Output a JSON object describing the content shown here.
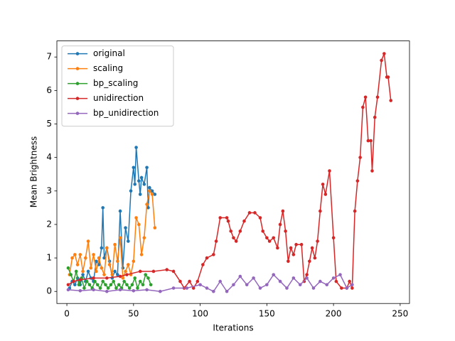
{
  "chart_data": {
    "type": "line",
    "xlabel": "Iterations",
    "ylabel": "Mean Brightness",
    "xlim": [
      -7.5,
      257
    ],
    "ylim": [
      -0.36,
      7.48
    ],
    "xticks": [
      0,
      50,
      100,
      150,
      200,
      250
    ],
    "yticks": [
      0,
      1,
      2,
      3,
      4,
      5,
      6,
      7
    ],
    "legend": "upper left",
    "series": [
      {
        "name": "original",
        "color": "#1f77b4",
        "x": [
          2,
          4,
          6,
          8,
          10,
          12,
          14,
          16,
          18,
          20,
          22,
          24,
          26,
          27,
          28,
          30,
          32,
          34,
          36,
          38,
          40,
          42,
          44,
          46,
          48,
          50,
          51,
          52,
          54,
          55,
          56,
          58,
          60,
          61,
          62,
          64,
          66
        ],
        "values": [
          0.1,
          0.3,
          0.2,
          0.4,
          0.2,
          0.5,
          0.3,
          0.6,
          0.4,
          0.3,
          0.9,
          0.8,
          1.3,
          2.5,
          1.0,
          1.3,
          0.9,
          0.4,
          0.6,
          0.5,
          2.4,
          0.7,
          1.9,
          1.5,
          3.0,
          3.7,
          3.2,
          4.3,
          3.3,
          2.9,
          3.4,
          3.2,
          3.7,
          2.5,
          3.1,
          3.0,
          2.9
        ]
      },
      {
        "name": "scaling",
        "color": "#ff7f0e",
        "x": [
          2,
          4,
          6,
          8,
          10,
          12,
          14,
          16,
          18,
          20,
          22,
          24,
          26,
          28,
          30,
          32,
          34,
          36,
          38,
          40,
          42,
          44,
          46,
          48,
          50,
          52,
          54,
          56,
          58,
          60,
          62,
          64,
          66
        ],
        "values": [
          0.5,
          1.0,
          1.1,
          0.8,
          1.1,
          0.6,
          1.0,
          1.5,
          0.7,
          1.1,
          0.6,
          1.0,
          0.7,
          0.5,
          1.3,
          0.8,
          0.5,
          1.4,
          0.9,
          1.6,
          0.4,
          0.6,
          0.8,
          0.5,
          0.9,
          2.2,
          2.0,
          1.1,
          1.6,
          2.6,
          3.0,
          2.9,
          1.9
        ]
      },
      {
        "name": "bp_scaling",
        "color": "#2ca02c",
        "x": [
          1,
          3,
          5,
          7,
          9,
          11,
          13,
          15,
          17,
          19,
          21,
          23,
          25,
          27,
          29,
          31,
          33,
          35,
          37,
          39,
          41,
          43,
          45,
          47,
          49,
          51,
          53,
          55,
          57,
          59,
          61,
          63
        ],
        "values": [
          0.7,
          0.5,
          0.3,
          0.6,
          0.2,
          0.4,
          0.1,
          0.3,
          0.2,
          0.1,
          0.3,
          0.2,
          0.1,
          0.3,
          0.2,
          0.1,
          0.2,
          0.3,
          0.1,
          0.2,
          0.1,
          0.3,
          0.2,
          0.1,
          0.2,
          0.4,
          0.1,
          0.3,
          0.2,
          0.5,
          0.4,
          0.2
        ]
      },
      {
        "name": "unidirection",
        "color": "#d62728",
        "x": [
          1,
          5,
          10,
          20,
          30,
          40,
          45,
          55,
          65,
          75,
          80,
          85,
          88,
          92,
          95,
          98,
          102,
          105,
          110,
          112,
          115,
          120,
          121,
          123,
          125,
          127,
          130,
          133,
          137,
          141,
          145,
          147,
          150,
          152,
          155,
          158,
          160,
          162,
          164,
          166,
          168,
          170,
          172,
          176,
          178,
          180,
          182,
          184,
          186,
          188,
          190,
          192,
          194,
          197,
          200,
          202,
          206,
          210,
          212,
          214,
          216,
          218,
          220,
          222,
          224,
          226,
          228,
          229,
          231,
          233,
          236,
          238,
          240,
          241,
          243
        ],
        "values": [
          0.2,
          0.3,
          0.35,
          0.4,
          0.4,
          0.45,
          0.5,
          0.6,
          0.6,
          0.65,
          0.6,
          0.3,
          0.1,
          0.3,
          0.1,
          0.3,
          0.8,
          1.0,
          1.1,
          1.5,
          2.2,
          2.2,
          2.1,
          1.8,
          1.6,
          1.5,
          1.8,
          2.1,
          2.35,
          2.35,
          2.2,
          1.8,
          1.6,
          1.5,
          1.6,
          1.3,
          2.0,
          2.4,
          1.8,
          0.9,
          1.3,
          1.1,
          1.4,
          1.4,
          0.3,
          0.5,
          0.9,
          1.3,
          1.0,
          1.5,
          2.4,
          3.2,
          2.9,
          3.6,
          1.6,
          0.3,
          0.1,
          0.1,
          0.3,
          0.1,
          2.4,
          3.3,
          4.0,
          5.5,
          5.8,
          4.5,
          4.5,
          3.6,
          5.2,
          5.8,
          6.9,
          7.1,
          6.4,
          6.4,
          5.7
        ]
      },
      {
        "name": "bp_unidirection",
        "color": "#9467bd",
        "x": [
          1,
          10,
          20,
          30,
          40,
          50,
          60,
          70,
          80,
          90,
          100,
          105,
          110,
          115,
          120,
          125,
          130,
          135,
          140,
          145,
          150,
          155,
          160,
          165,
          170,
          175,
          180,
          185,
          190,
          195,
          200,
          205,
          210,
          214
        ],
        "values": [
          0.05,
          0.02,
          0.05,
          0.0,
          0.05,
          0.02,
          0.05,
          0.0,
          0.1,
          0.1,
          0.2,
          0.1,
          0.0,
          0.3,
          0.0,
          0.2,
          0.45,
          0.2,
          0.4,
          0.1,
          0.2,
          0.5,
          0.3,
          0.1,
          0.4,
          0.2,
          0.4,
          0.1,
          0.3,
          0.2,
          0.4,
          0.5,
          0.1,
          0.2
        ]
      }
    ]
  }
}
